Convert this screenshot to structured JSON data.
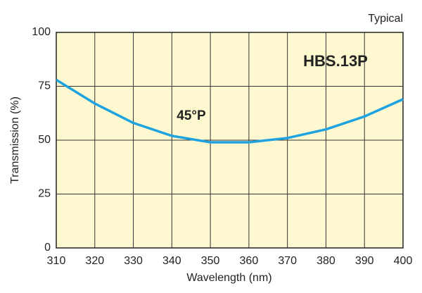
{
  "chart_data": {
    "type": "line",
    "x_label": "Wavelength (nm)",
    "y_label": "Transmission (%)",
    "annotations": [
      "Typical",
      "HBS.13P",
      "45°P"
    ],
    "x": [
      310,
      320,
      330,
      340,
      350,
      360,
      370,
      380,
      390,
      400
    ],
    "series": [
      {
        "name": "45°P",
        "color": "#1ea3e0",
        "values": [
          78,
          67,
          58,
          52,
          49,
          49,
          51,
          55,
          61,
          69
        ]
      }
    ],
    "xlim": [
      310,
      400
    ],
    "xticks": [
      310,
      320,
      330,
      340,
      350,
      360,
      370,
      380,
      390,
      400
    ],
    "ylim": [
      0,
      100
    ],
    "yticks": [
      0,
      25,
      50,
      75,
      100
    ],
    "grid": true,
    "background": "#fdf8cf"
  }
}
